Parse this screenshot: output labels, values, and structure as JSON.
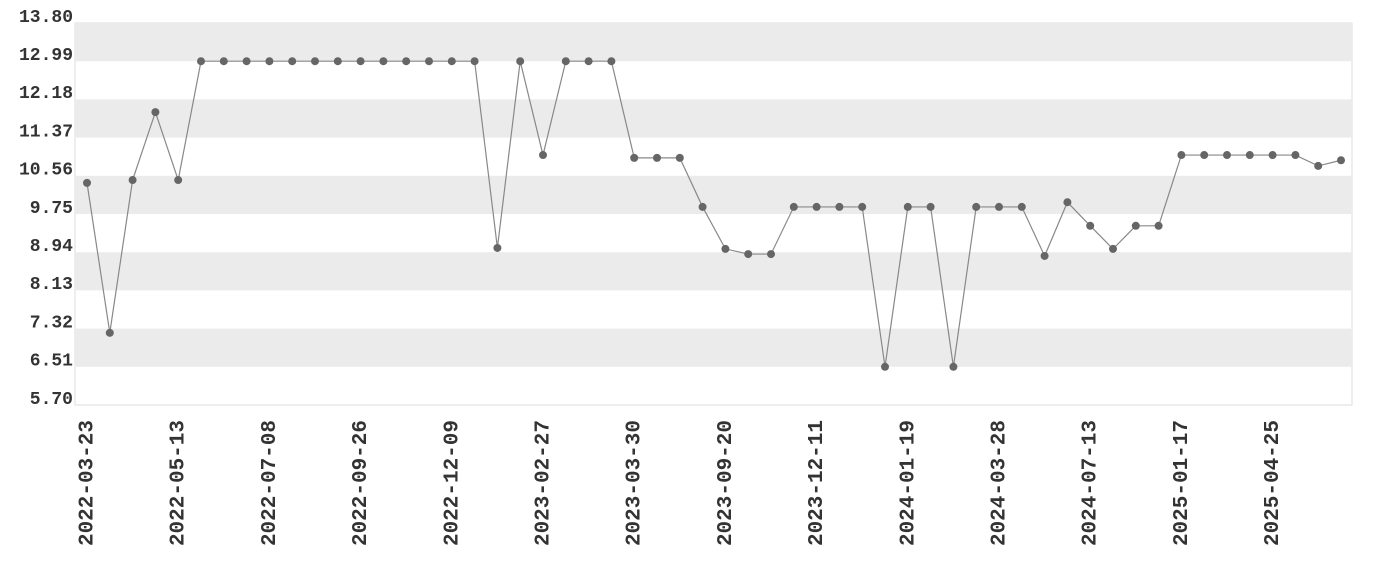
{
  "chart_data": {
    "type": "line",
    "categories": [
      "2022-03-23",
      null,
      null,
      null,
      "2022-05-13",
      null,
      null,
      null,
      "2022-07-08",
      null,
      null,
      null,
      "2022-09-26",
      null,
      null,
      null,
      "2022-12-09",
      null,
      null,
      null,
      "2023-02-27",
      null,
      null,
      null,
      "2023-03-30",
      null,
      null,
      null,
      "2023-09-20",
      null,
      null,
      null,
      "2023-12-11",
      null,
      null,
      null,
      "2024-01-19",
      null,
      null,
      null,
      "2024-03-28",
      null,
      null,
      null,
      "2024-07-13",
      null,
      null,
      null,
      "2025-01-17",
      null,
      null,
      null,
      "2025-04-25",
      null,
      null,
      null
    ],
    "values": [
      10.41,
      7.23,
      10.47,
      11.91,
      10.47,
      12.99,
      12.99,
      12.99,
      12.99,
      12.99,
      12.99,
      12.99,
      12.99,
      12.99,
      12.99,
      12.99,
      12.99,
      12.99,
      9.03,
      12.99,
      11.0,
      12.99,
      12.99,
      12.99,
      10.94,
      10.94,
      10.94,
      9.9,
      9.01,
      8.9,
      8.9,
      9.9,
      9.9,
      9.9,
      9.9,
      6.51,
      9.9,
      9.9,
      6.51,
      9.9,
      9.9,
      9.9,
      8.86,
      10.0,
      9.5,
      9.01,
      9.5,
      9.5,
      11.0,
      11.0,
      11.0,
      11.0,
      11.0,
      11.0,
      10.77,
      10.89
    ],
    "color": "#666666",
    "ylim": [
      5.7,
      13.8
    ],
    "yticks": [
      {
        "value": 5.7,
        "label": "5.70"
      },
      6.51,
      7.32,
      8.13,
      8.94,
      9.75,
      10.56,
      11.37,
      12.18,
      12.99,
      {
        "value": 13.8,
        "label": "13.80"
      }
    ],
    "banded_grid": true
  }
}
